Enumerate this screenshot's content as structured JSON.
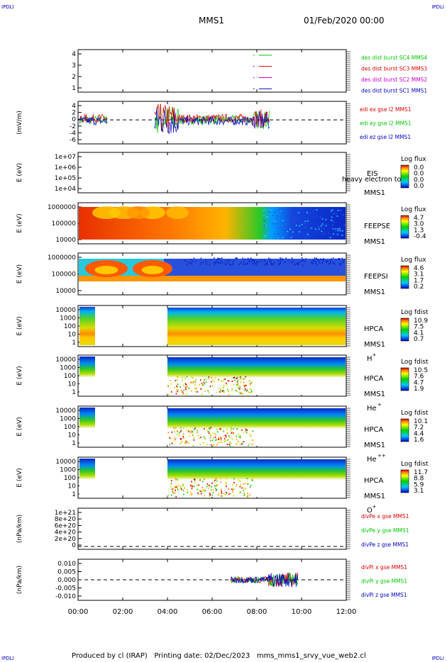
{
  "corners": {
    "tl": "IPDLI",
    "tr": "IPDLI",
    "bl": "IPDLI",
    "br": "IPDLI"
  },
  "header": {
    "spacecraft": "MMS1",
    "datetime": "01/Feb/2020 00:00"
  },
  "footer": {
    "text": "Produced by cl (IRAP)   Printing date: 02/Dec/2023   mms_mms1_srvy_vue_web2.cl"
  },
  "colors": {
    "blue": "#0000c8",
    "red": "#dc0000",
    "green": "#00c800",
    "magenta": "#c800c8",
    "black": "#000000"
  },
  "chart_data": [
    {
      "type": "line",
      "panel": "burst",
      "yticks": [
        "1",
        "2",
        "3",
        "4"
      ],
      "ylim": [
        0.7,
        4.5
      ],
      "series": [
        {
          "name": "des dist burst SC1 MMS1",
          "color": "#0000c8",
          "x": [
            "07:50",
            "08:48"
          ],
          "y": [
            1,
            1
          ]
        },
        {
          "name": "des dist burst SC2 MMS2",
          "color": "#c800c8",
          "x": [
            "07:50",
            "08:48"
          ],
          "y": [
            2,
            2
          ]
        },
        {
          "name": "des dist burst SC3 MMS3",
          "color": "#dc0000",
          "x": [
            "07:50",
            "08:48"
          ],
          "y": [
            3,
            3
          ]
        },
        {
          "name": "des dist burst SC4 MMS4",
          "color": "#00c800",
          "x": [
            "07:50",
            "08:48"
          ],
          "y": [
            4,
            4
          ]
        }
      ]
    },
    {
      "type": "line",
      "panel": "edi",
      "ylabel": "(mV/m)",
      "yticks": [
        "4",
        "2",
        "0",
        "-2",
        "-4",
        "-6"
      ],
      "ylim": [
        -6.5,
        5
      ],
      "series": [
        {
          "name": "edi ex gse l2 MMS1",
          "color": "#dc0000"
        },
        {
          "name": "edi ey gse l2 MMS1",
          "color": "#00c800"
        },
        {
          "name": "edi ez gse l2 MMS1",
          "color": "#0000c8"
        }
      ]
    },
    {
      "type": "heatmap",
      "panel": "eis",
      "ylabel": "E (eV)",
      "yticks": [
        "1e+07",
        "1e+06",
        "1e+05",
        "1e+04"
      ],
      "instrument": [
        "EIS",
        "MMS1"
      ],
      "cbar_title": "Log flux",
      "cbar_ticks": [
        "0.0",
        "0.0",
        "0.0",
        "0.0"
      ],
      "note": "heavy electron to"
    },
    {
      "type": "heatmap",
      "panel": "feeps_e",
      "ylabel": "E (eV)",
      "yticks": [
        "1000000",
        "100000",
        "10000"
      ],
      "instrument": [
        "FEEPSE",
        "MMS1"
      ],
      "cbar_title": "Log flux",
      "cbar_ticks": [
        "4.7",
        "3.0",
        "1.3",
        "-0.4"
      ]
    },
    {
      "type": "heatmap",
      "panel": "feeps_i",
      "ylabel": "E (eV)",
      "yticks": [
        "1000000",
        "100000",
        "10000"
      ],
      "instrument": [
        "FEEPSI",
        "MMS1"
      ],
      "cbar_title": "Log flux",
      "cbar_ticks": [
        "4.6",
        "3.1",
        "1.7",
        "0.2"
      ]
    },
    {
      "type": "heatmap",
      "panel": "hpca_h",
      "ylabel": "E (eV)",
      "yticks": [
        "10000",
        "1000",
        "100",
        "10",
        "1"
      ],
      "instrument": [
        "HPCA",
        "MMS1"
      ],
      "species": "H",
      "charge": "+",
      "cbar_title": "Log fdist",
      "cbar_ticks": [
        "10.9",
        "7.5",
        "4.1",
        "0.7"
      ]
    },
    {
      "type": "heatmap",
      "panel": "hpca_he",
      "ylabel": "E (eV)",
      "yticks": [
        "10000",
        "1000",
        "100",
        "10",
        "1"
      ],
      "instrument": [
        "HPCA",
        "MMS1"
      ],
      "species": "He",
      "charge": "+",
      "cbar_title": "Log fdist",
      "cbar_ticks": [
        "10.5",
        "7.6",
        "4.7",
        "1.9"
      ]
    },
    {
      "type": "heatmap",
      "panel": "hpca_hepp",
      "ylabel": "E (eV)",
      "yticks": [
        "10000",
        "1000",
        "100",
        "10",
        "1"
      ],
      "instrument": [
        "HPCA",
        "MMS1"
      ],
      "species": "He",
      "charge": "++",
      "cbar_title": "Log fdist",
      "cbar_ticks": [
        "10.1",
        "7.2",
        "4.4",
        "1.6"
      ]
    },
    {
      "type": "heatmap",
      "panel": "hpca_o",
      "ylabel": "E (eV)",
      "yticks": [
        "10000",
        "1000",
        "100",
        "10",
        "1"
      ],
      "instrument": [
        "HPCA",
        "MMS1"
      ],
      "species": "O",
      "charge": "+",
      "cbar_title": "Log fdist",
      "cbar_ticks": [
        "11.7",
        "8.8",
        "5.9",
        "3.1"
      ]
    },
    {
      "type": "line",
      "panel": "divpe",
      "ylabel": "(nPa/km)",
      "yticks": [
        "1e+21",
        "8e+20",
        "6e+20",
        "4e+20",
        "2e+20",
        "0"
      ],
      "series": [
        {
          "name": "divPe x gse MMS1",
          "color": "#dc0000"
        },
        {
          "name": "divPe y gse MMS1",
          "color": "#00c800"
        },
        {
          "name": "divPe z gse MMS1",
          "color": "#0000c8"
        }
      ]
    },
    {
      "type": "line",
      "panel": "divpi",
      "ylabel": "(nPa/km)",
      "yticks": [
        "0.010",
        "0.005",
        "0.000",
        "-0.005",
        "-0.010"
      ],
      "ylim": [
        -0.0125,
        0.0125
      ],
      "series": [
        {
          "name": "divPi x gse MMS1",
          "color": "#dc0000"
        },
        {
          "name": "divPi y gse MMS1",
          "color": "#00c800"
        },
        {
          "name": "divPi z gse MMS1",
          "color": "#0000c8"
        }
      ]
    }
  ],
  "xaxis": {
    "ticks": [
      "00:00",
      "02:00",
      "04:00",
      "06:00",
      "08:00",
      "10:00",
      "12:00"
    ],
    "range": [
      "00:00",
      "12:00"
    ]
  }
}
